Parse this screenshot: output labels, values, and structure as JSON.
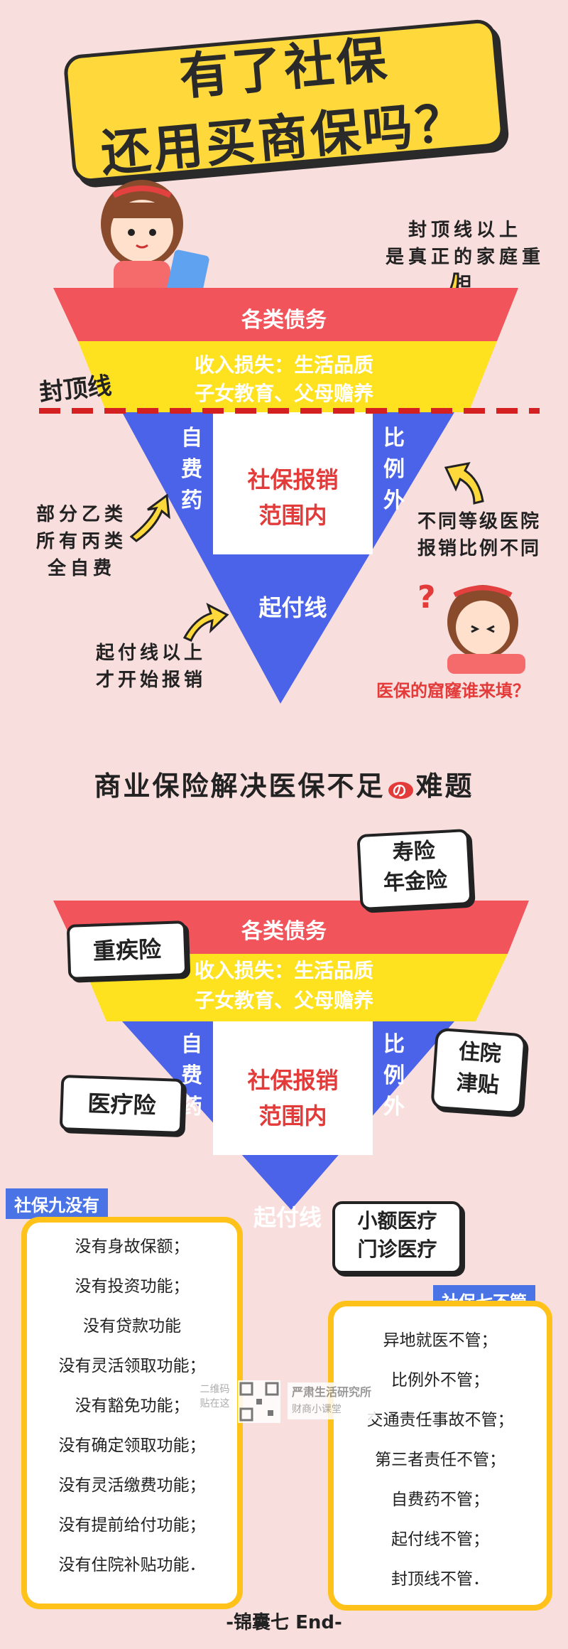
{
  "title": {
    "line1": "有了社保",
    "line2": "还用买商保吗？"
  },
  "diagram1": {
    "note_top": [
      "封顶线以上",
      "是真正的家庭重担"
    ],
    "debt": "各类债务",
    "income": [
      "收入损失：生活品质",
      "子女教育、父母赡养"
    ],
    "cap_line": "封顶线",
    "self_drug": [
      "自",
      "费",
      "药"
    ],
    "ratio": [
      "比",
      "例",
      "外"
    ],
    "center": [
      "社保报销",
      "范围内"
    ],
    "deductible": "起付线",
    "note_left": [
      "部分乙类",
      "所有丙类",
      "全自费"
    ],
    "note_right": [
      "不同等级医院",
      "报销比例不同"
    ],
    "note_bottom": [
      "起付线以上",
      "才开始报销"
    ],
    "question": "医保的窟窿谁来填？",
    "qmark": "?"
  },
  "section2_title": "商业保险解决医保不足",
  "section2_small": "の",
  "section2_title_end": "难题",
  "diagram2": {
    "debt": "各类债务",
    "income": [
      "收入损失：生活品质",
      "子女教育、父母赡养"
    ],
    "self_drug": [
      "自",
      "费",
      "药"
    ],
    "ratio": [
      "比",
      "例",
      "外"
    ],
    "center": [
      "社保报销",
      "范围内"
    ],
    "deductible": "起付线",
    "bubbles": {
      "life": [
        "寿险",
        "年金险"
      ],
      "critical": "重疾险",
      "medical": "医疗险",
      "hospital": [
        "住院",
        "津贴"
      ],
      "small": [
        "小额医疗",
        "门诊医疗"
      ]
    }
  },
  "nine_no": {
    "tag": "社保九没有",
    "items": [
      "没有身故保额；",
      "没有投资功能；",
      "没有贷款功能",
      "没有灵活领取功能；",
      "没有豁免功能；",
      "没有确定领取功能；",
      "没有灵活缴费功能；",
      "没有提前给付功能；",
      "没有住院补贴功能．"
    ]
  },
  "seven_no": {
    "tag": "社保七不管",
    "items": [
      "异地就医不管；",
      "比例外不管；",
      "交通责任事故不管；",
      "第三者责任不管；",
      "自费药不管；",
      "起付线不管；",
      "封顶线不管．"
    ]
  },
  "watermark": {
    "qr_text": [
      "二维码",
      "贴在这"
    ],
    "brand": "严肃生活研究所",
    "brand_sub": "财商小课堂"
  },
  "footer": "-锦囊七 End-",
  "colors": {
    "red": "#f2545b",
    "yellow": "#ffe21f",
    "blue": "#4a63e8",
    "accent_red": "#e33a3a",
    "bg": "#f9dede"
  }
}
